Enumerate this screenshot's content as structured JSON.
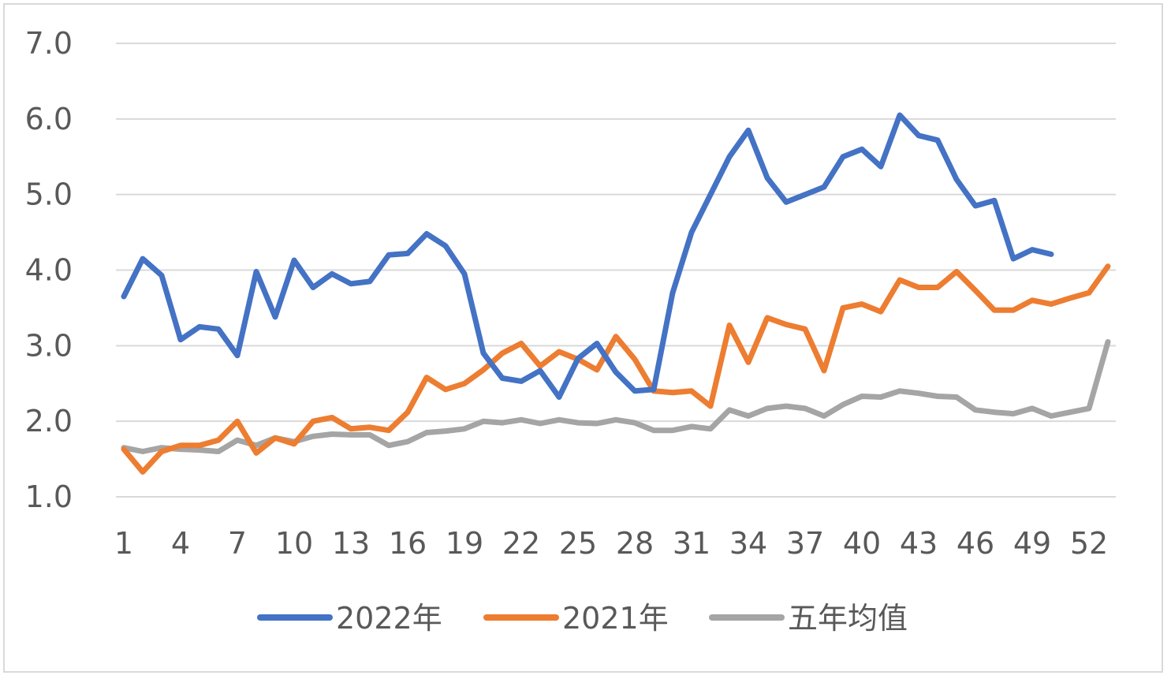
{
  "chart_data": {
    "type": "line",
    "title": "",
    "xlabel": "",
    "ylabel": "",
    "ylim": [
      1.0,
      7.0
    ],
    "yticks": [
      "1.0",
      "2.0",
      "3.0",
      "4.0",
      "5.0",
      "6.0",
      "7.0"
    ],
    "xticks": [
      "1",
      "4",
      "7",
      "10",
      "13",
      "16",
      "19",
      "22",
      "25",
      "28",
      "31",
      "34",
      "37",
      "40",
      "43",
      "46",
      "49",
      "52"
    ],
    "x_range": [
      1,
      53
    ],
    "grid": "horizontal",
    "legend_position": "bottom",
    "series": [
      {
        "name": "2022年",
        "color": "#4472C4",
        "values": [
          3.65,
          4.15,
          3.93,
          3.08,
          3.25,
          3.22,
          2.87,
          3.98,
          3.38,
          4.13,
          3.77,
          3.95,
          3.82,
          3.85,
          4.2,
          4.22,
          4.48,
          4.32,
          3.95,
          2.9,
          2.57,
          2.53,
          2.67,
          2.32,
          2.83,
          3.03,
          2.65,
          2.4,
          2.42,
          3.7,
          4.5,
          5.0,
          5.5,
          5.85,
          5.22,
          4.9,
          5.0,
          5.1,
          5.5,
          5.6,
          5.37,
          6.05,
          5.78,
          5.72,
          5.2,
          4.85,
          4.92,
          4.15,
          4.27,
          4.21
        ]
      },
      {
        "name": "2021年",
        "color": "#ED7D31",
        "values": [
          1.63,
          1.33,
          1.6,
          1.68,
          1.68,
          1.75,
          2.0,
          1.58,
          1.78,
          1.7,
          2.0,
          2.05,
          1.9,
          1.92,
          1.88,
          2.12,
          2.58,
          2.42,
          2.5,
          2.68,
          2.9,
          3.03,
          2.73,
          2.92,
          2.82,
          2.68,
          3.12,
          2.82,
          2.4,
          2.38,
          2.4,
          2.2,
          3.27,
          2.78,
          3.37,
          3.28,
          3.22,
          2.67,
          3.5,
          3.55,
          3.45,
          3.87,
          3.77,
          3.77,
          3.98,
          3.73,
          3.47,
          3.47,
          3.6,
          3.55,
          3.63,
          3.7,
          4.05
        ]
      },
      {
        "name": "五年均值",
        "color": "#A5A5A5",
        "values": [
          1.65,
          1.6,
          1.65,
          1.63,
          1.62,
          1.6,
          1.75,
          1.68,
          1.78,
          1.73,
          1.8,
          1.83,
          1.82,
          1.82,
          1.68,
          1.73,
          1.85,
          1.87,
          1.9,
          2.0,
          1.98,
          2.02,
          1.97,
          2.02,
          1.98,
          1.97,
          2.02,
          1.98,
          1.88,
          1.88,
          1.93,
          1.9,
          2.15,
          2.07,
          2.17,
          2.2,
          2.17,
          2.07,
          2.22,
          2.33,
          2.32,
          2.4,
          2.37,
          2.33,
          2.32,
          2.15,
          2.12,
          2.1,
          2.17,
          2.07,
          2.12,
          2.17,
          3.05
        ]
      }
    ]
  }
}
